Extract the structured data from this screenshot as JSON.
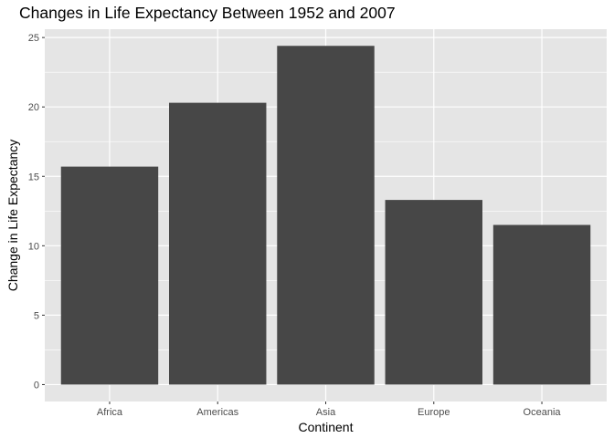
{
  "chart_data": {
    "type": "bar",
    "title": "Changes in Life Expectancy Between 1952 and 2007",
    "xlabel": "Continent",
    "ylabel": "Change in Life Expectancy",
    "categories": [
      "Africa",
      "Americas",
      "Asia",
      "Europe",
      "Oceania"
    ],
    "values": [
      15.7,
      20.3,
      24.4,
      13.3,
      11.5
    ],
    "ylim": [
      -1.22,
      25.6
    ],
    "yticks": [
      0,
      5,
      10,
      15,
      20,
      25
    ],
    "grid": true,
    "bar_color": "#474747",
    "panel_color": "#e5e5e5",
    "grid_color": "#ffffff"
  }
}
